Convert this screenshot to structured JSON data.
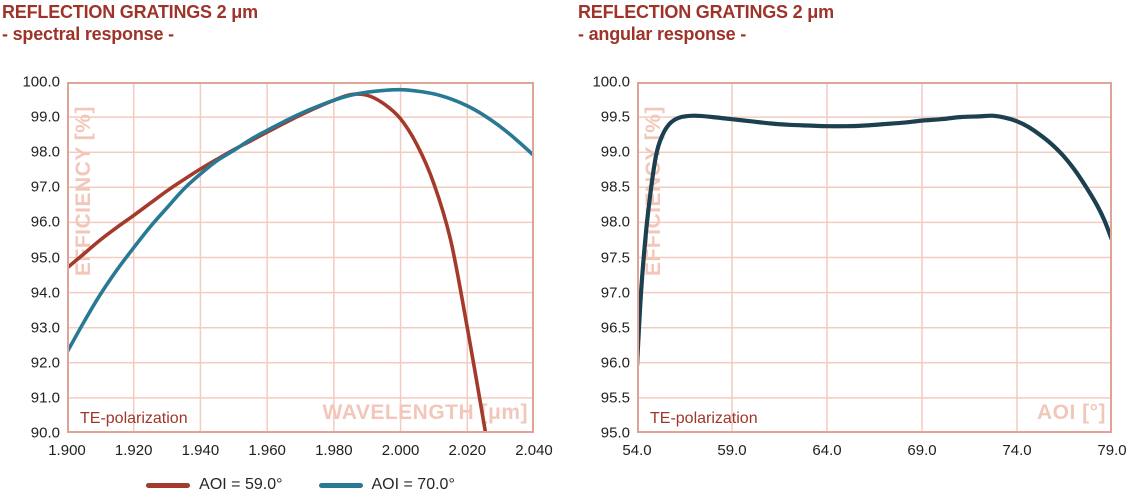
{
  "palette": {
    "title_red": "#9E332A",
    "annotation_red": "#9E362C",
    "watermark_pink": "#F2C7BA",
    "grid_pink": "#F2CCC2",
    "border_pink": "#DEA495",
    "tick_text": "#212121",
    "legend_text": "#262626",
    "series_red": "#A33A2B",
    "series_teal": "#287994",
    "series_navy": "#1C4050"
  },
  "chart_data": [
    {
      "type": "line",
      "title": "REFLECTION GRATINGS 2 μm",
      "subtitle": "- spectral response -",
      "ylabel": "EFFICIENCY [%]",
      "xlabel": "WAVELENGTH [μm]",
      "annotation": "TE-polarization",
      "xlim": [
        1.9,
        2.04
      ],
      "ylim": [
        90.0,
        100.0
      ],
      "xticks": [
        "1.900",
        "1.920",
        "1.940",
        "1.960",
        "1.980",
        "2.000",
        "2.020",
        "2.040"
      ],
      "yticks": [
        "100.0",
        "99.0",
        "98.0",
        "97.0",
        "96.0",
        "95.0",
        "94.0",
        "93.0",
        "92.0",
        "91.0",
        "90.0"
      ],
      "grid": true,
      "legend": true,
      "series": [
        {
          "name": "AOI = 59.0°",
          "color": "#A33A2B",
          "points": [
            [
              1.9,
              94.7
            ],
            [
              1.905,
              95.1
            ],
            [
              1.91,
              95.5
            ],
            [
              1.915,
              95.86
            ],
            [
              1.92,
              96.2
            ],
            [
              1.925,
              96.55
            ],
            [
              1.93,
              96.9
            ],
            [
              1.935,
              97.22
            ],
            [
              1.94,
              97.52
            ],
            [
              1.945,
              97.8
            ],
            [
              1.95,
              98.07
            ],
            [
              1.955,
              98.32
            ],
            [
              1.96,
              98.57
            ],
            [
              1.965,
              98.82
            ],
            [
              1.97,
              99.06
            ],
            [
              1.975,
              99.28
            ],
            [
              1.98,
              99.48
            ],
            [
              1.985,
              99.64
            ],
            [
              1.99,
              99.62
            ],
            [
              1.995,
              99.38
            ],
            [
              2.0,
              98.95
            ],
            [
              2.005,
              98.2
            ],
            [
              2.01,
              97.1
            ],
            [
              2.015,
              95.5
            ],
            [
              2.02,
              93.0
            ],
            [
              2.0255,
              90.0
            ]
          ]
        },
        {
          "name": "AOI = 70.0°",
          "color": "#287994",
          "points": [
            [
              1.9,
              92.3
            ],
            [
              1.905,
              93.15
            ],
            [
              1.91,
              93.95
            ],
            [
              1.915,
              94.65
            ],
            [
              1.92,
              95.28
            ],
            [
              1.925,
              95.88
            ],
            [
              1.93,
              96.42
            ],
            [
              1.935,
              96.95
            ],
            [
              1.94,
              97.38
            ],
            [
              1.945,
              97.76
            ],
            [
              1.95,
              98.05
            ],
            [
              1.955,
              98.36
            ],
            [
              1.96,
              98.62
            ],
            [
              1.965,
              98.87
            ],
            [
              1.97,
              99.1
            ],
            [
              1.975,
              99.3
            ],
            [
              1.98,
              99.48
            ],
            [
              1.985,
              99.62
            ],
            [
              1.99,
              99.71
            ],
            [
              1.995,
              99.76
            ],
            [
              2.0,
              99.78
            ],
            [
              2.005,
              99.74
            ],
            [
              2.01,
              99.66
            ],
            [
              2.015,
              99.52
            ],
            [
              2.02,
              99.32
            ],
            [
              2.025,
              99.05
            ],
            [
              2.03,
              98.72
            ],
            [
              2.035,
              98.33
            ],
            [
              2.04,
              97.9
            ]
          ]
        }
      ]
    },
    {
      "type": "line",
      "title": "REFLECTION GRATINGS 2 μm",
      "subtitle": "- angular response -",
      "ylabel": "EFFICIENCY [%]",
      "xlabel": "AOI [°]",
      "annotation": "TE-polarization",
      "xlim": [
        54.0,
        79.0
      ],
      "ylim": [
        95.0,
        100.0
      ],
      "xticks": [
        "54.0",
        "59.0",
        "64.0",
        "69.0",
        "74.0",
        "79.0"
      ],
      "yticks": [
        "100.0",
        "99.5",
        "99.0",
        "98.5",
        "98.0",
        "97.5",
        "97.0",
        "96.5",
        "96.0",
        "95.5",
        "95.0"
      ],
      "grid": true,
      "legend": false,
      "series": [
        {
          "name": "",
          "color": "#1C4050",
          "points": [
            [
              54.0,
              95.95
            ],
            [
              54.2,
              96.95
            ],
            [
              54.45,
              97.8
            ],
            [
              54.7,
              98.4
            ],
            [
              55.0,
              98.95
            ],
            [
              55.3,
              99.22
            ],
            [
              55.7,
              99.4
            ],
            [
              56.2,
              99.49
            ],
            [
              57.0,
              99.52
            ],
            [
              58.0,
              99.5
            ],
            [
              59.0,
              99.47
            ],
            [
              60.0,
              99.44
            ],
            [
              61.0,
              99.41
            ],
            [
              62.0,
              99.39
            ],
            [
              63.0,
              99.38
            ],
            [
              64.0,
              99.37
            ],
            [
              65.0,
              99.37
            ],
            [
              66.0,
              99.38
            ],
            [
              67.0,
              99.4
            ],
            [
              68.0,
              99.42
            ],
            [
              69.0,
              99.45
            ],
            [
              70.0,
              99.47
            ],
            [
              71.0,
              99.5
            ],
            [
              72.0,
              99.51
            ],
            [
              72.7,
              99.52
            ],
            [
              73.4,
              99.49
            ],
            [
              74.0,
              99.44
            ],
            [
              74.6,
              99.36
            ],
            [
              75.2,
              99.25
            ],
            [
              75.8,
              99.12
            ],
            [
              76.4,
              98.96
            ],
            [
              77.0,
              98.76
            ],
            [
              77.6,
              98.52
            ],
            [
              78.2,
              98.25
            ],
            [
              78.6,
              98.03
            ],
            [
              79.0,
              97.75
            ]
          ]
        }
      ]
    }
  ]
}
